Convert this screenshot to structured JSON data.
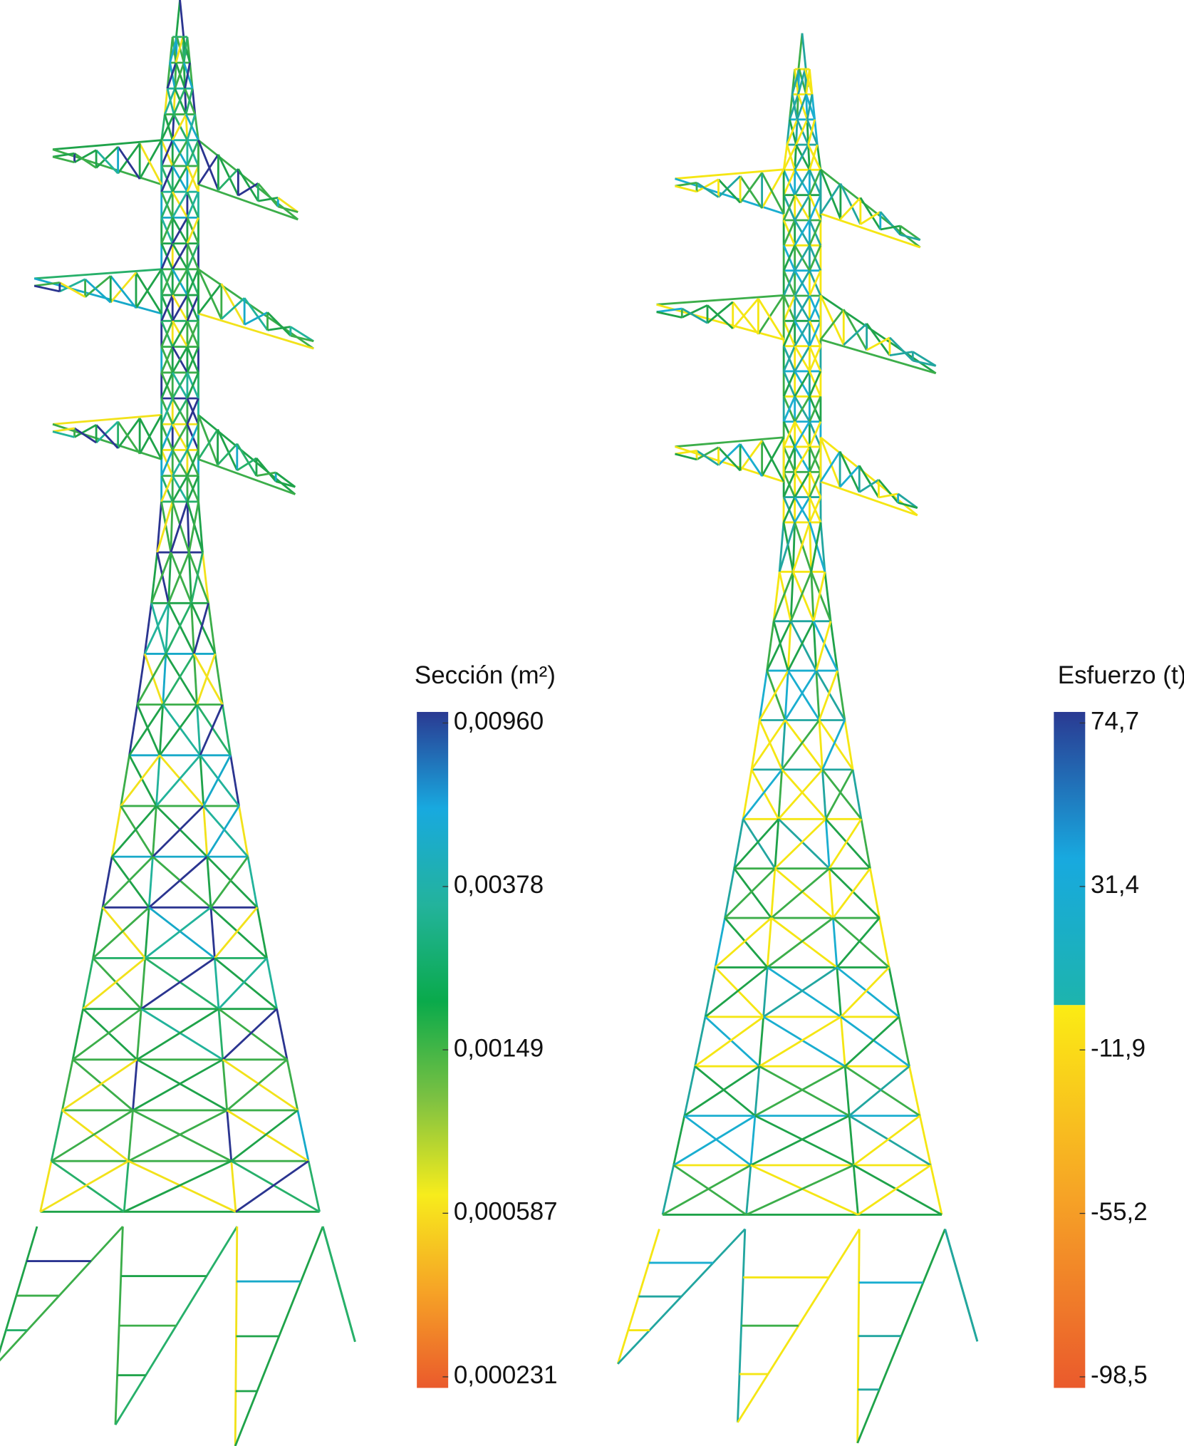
{
  "chart_data": [
    {
      "type": "colorbar",
      "title": "Sección (m²)",
      "scale": "log",
      "ylim": [
        0.000231,
        0.0096
      ],
      "yticks": [
        {
          "value": 0.0096,
          "label": "0,00960"
        },
        {
          "value": 0.00378,
          "label": "0,00378"
        },
        {
          "value": 0.00149,
          "label": "0,00149"
        },
        {
          "value": 0.000587,
          "label": "0,000587"
        },
        {
          "value": 0.000231,
          "label": "0,000231"
        }
      ],
      "colors": [
        "#ea5a2c",
        "#f6a326",
        "#f7ec1c",
        "#7cc142",
        "#0aaa4b",
        "#23b39c",
        "#18a9df",
        "#2a3a92"
      ]
    },
    {
      "type": "colorbar",
      "title": "Esfuerzo (t)",
      "scale": "linear",
      "ylim": [
        -98.5,
        74.7
      ],
      "split": 0,
      "yticks": [
        {
          "value": 74.7,
          "label": "74,7"
        },
        {
          "value": 31.4,
          "label": "31,4"
        },
        {
          "value": -11.9,
          "label": "-11,9"
        },
        {
          "value": -55.2,
          "label": "-55,2"
        },
        {
          "value": -98.5,
          "label": "-98,5"
        }
      ],
      "colors_below": [
        "#ea5a2c",
        "#f6a326",
        "#fbec14"
      ],
      "colors_above": [
        "#1db4ad",
        "#18a9df",
        "#2a3a92"
      ]
    }
  ]
}
